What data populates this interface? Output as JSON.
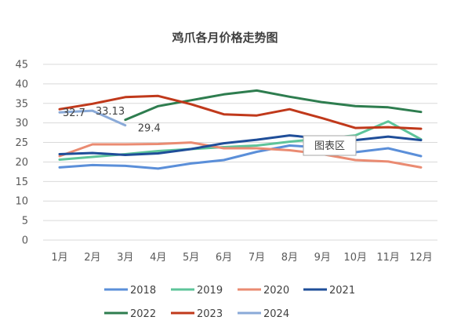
{
  "chart_data": {
    "type": "line",
    "title": "鸡爪各月价格走势图",
    "xlabel": "",
    "ylabel": "",
    "categories": [
      "1月",
      "2月",
      "3月",
      "4月",
      "5月",
      "6月",
      "7月",
      "8月",
      "9月",
      "10月",
      "11月",
      "12月"
    ],
    "ylim": [
      0,
      45
    ],
    "yticks": [
      0,
      5,
      10,
      15,
      20,
      25,
      30,
      35,
      40,
      45
    ],
    "grid": true,
    "legend": "bottom",
    "series": [
      {
        "name": "2018",
        "color": "#5b8fd9",
        "values": [
          18.6,
          19.2,
          19.0,
          18.3,
          19.6,
          20.5,
          22.6,
          24.2,
          23.7,
          22.5,
          23.5,
          21.5
        ]
      },
      {
        "name": "2019",
        "color": "#5ec49a",
        "values": [
          20.6,
          21.3,
          22.0,
          22.8,
          23.3,
          23.8,
          24.2,
          25.2,
          26.0,
          26.8,
          30.4,
          25.8
        ]
      },
      {
        "name": "2020",
        "color": "#ea8b72",
        "values": [
          21.5,
          24.5,
          24.5,
          24.6,
          25.0,
          23.5,
          23.5,
          23.0,
          22.0,
          20.5,
          20.1,
          18.6
        ]
      },
      {
        "name": "2021",
        "color": "#1f4e99",
        "values": [
          22.0,
          22.3,
          21.8,
          22.2,
          23.3,
          24.8,
          25.7,
          26.8,
          26.0,
          25.6,
          26.5,
          25.6
        ]
      },
      {
        "name": "2022",
        "color": "#2e7d4f",
        "values": [
          null,
          null,
          30.8,
          34.3,
          35.8,
          37.3,
          38.3,
          36.7,
          35.3,
          34.3,
          34.0,
          32.8
        ]
      },
      {
        "name": "2023",
        "color": "#c0391b",
        "values": [
          33.5,
          34.9,
          36.6,
          36.9,
          34.8,
          32.2,
          31.9,
          33.5,
          31.2,
          28.7,
          28.9,
          28.5
        ]
      },
      {
        "name": "2024",
        "color": "#8aaad8",
        "values": [
          32.7,
          33.13,
          29.4,
          null,
          null,
          null,
          null,
          null,
          null,
          null,
          null,
          null
        ],
        "labels": [
          "32.7",
          "33.13",
          "29.4"
        ]
      }
    ]
  },
  "tooltip": {
    "text": "图表区"
  }
}
